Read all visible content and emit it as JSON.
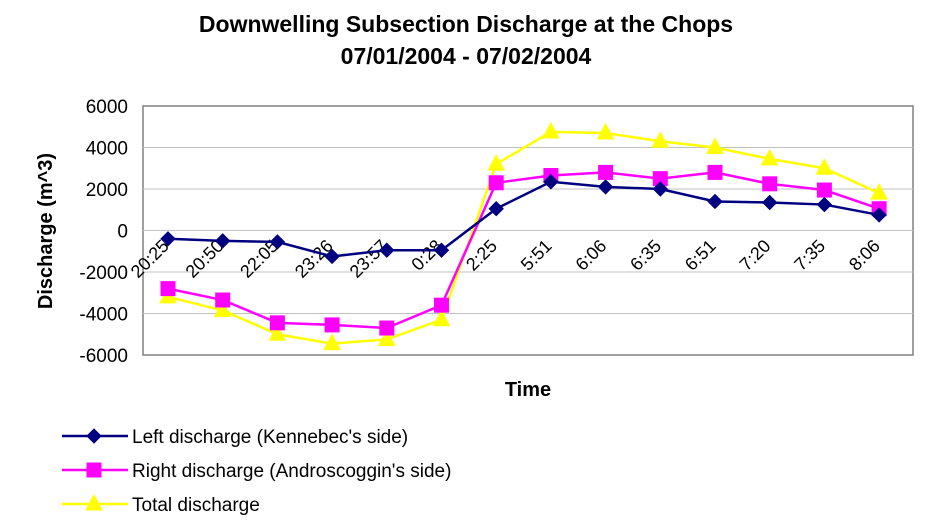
{
  "chart_data": {
    "type": "line",
    "title_line1": "Downwelling Subsection Discharge at the Chops",
    "title_line2": "07/01/2004 - 07/02/2004",
    "xlabel": "Time",
    "ylabel": "Discharge (m^3)",
    "categories": [
      "20:25",
      "20:50",
      "22:05",
      "23:26",
      "23:57",
      "0:28",
      "2:25",
      "5:51",
      "6:06",
      "6:35",
      "6:51",
      "7:20",
      "7:35",
      "8:06"
    ],
    "ylim": [
      -6000,
      6000
    ],
    "yticks": [
      6000,
      4000,
      2000,
      0,
      -2000,
      -4000,
      -6000
    ],
    "grid": "horizontal",
    "legend_position": "bottom-left",
    "series": [
      {
        "name": "Left discharge (Kennebec's side)",
        "color": "#000080",
        "marker": "diamond",
        "values": [
          -400,
          -500,
          -550,
          -1250,
          -950,
          -950,
          1050,
          2350,
          2100,
          2000,
          1400,
          1350,
          1250,
          750
        ]
      },
      {
        "name": "Right discharge (Androscoggin's side)",
        "color": "#FF00FF",
        "marker": "square",
        "values": [
          -2800,
          -3350,
          -4450,
          -4550,
          -4700,
          -3600,
          2300,
          2650,
          2800,
          2500,
          2800,
          2250,
          1950,
          1050
        ]
      },
      {
        "name": "Total discharge",
        "color": "#FFFF00",
        "marker": "triangle",
        "values": [
          -3200,
          -3850,
          -5000,
          -5450,
          -5250,
          -4300,
          3200,
          4750,
          4700,
          4300,
          4000,
          3450,
          3000,
          1800
        ]
      }
    ]
  }
}
